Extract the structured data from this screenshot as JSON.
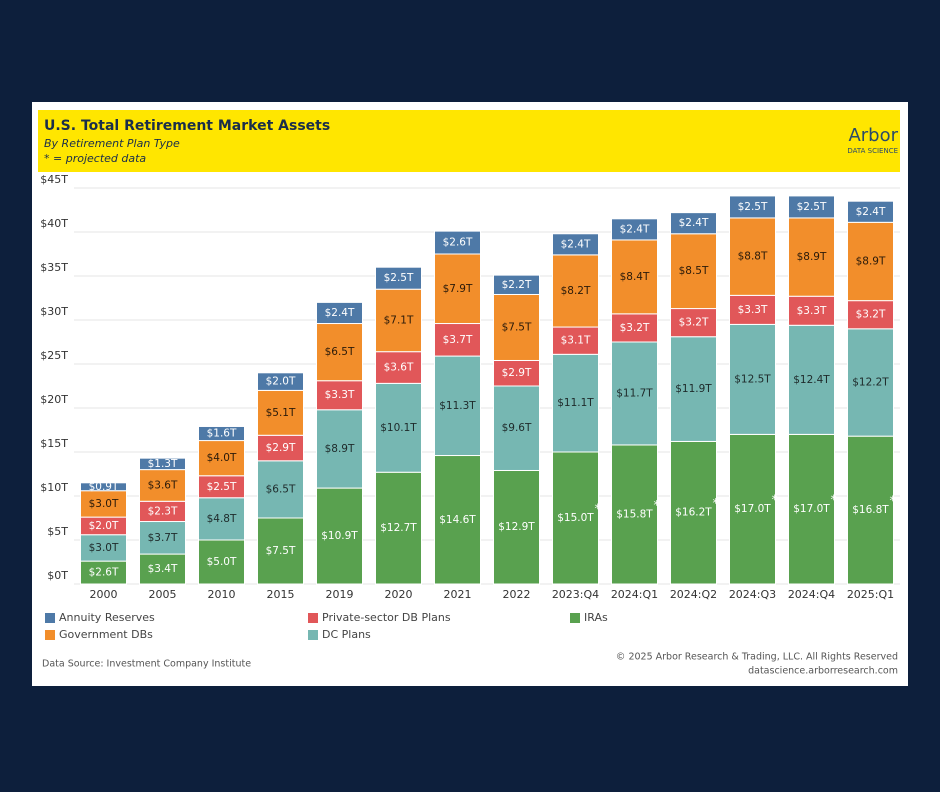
{
  "chart_data": {
    "type": "stacked_bar",
    "title": "U.S. Total Retirement Market Assets",
    "subtitle": "By Retirement Plan Type",
    "note": "* = projected data",
    "logo": "Arbor",
    "logo_sub": "DATA SCIENCE",
    "source": "Data Source: Investment Company Institute",
    "copyright": "© 2025 Arbor Research & Trading, LLC. All Rights Reserved",
    "website": "datascience.arborresearch.com",
    "categories": [
      "2000",
      "2005",
      "2010",
      "2015",
      "2019",
      "2020",
      "2021",
      "2022",
      "2023:Q4",
      "2024:Q1",
      "2024:Q2",
      "2024:Q3",
      "2024:Q4",
      "2025:Q1"
    ],
    "projected_markers": [
      null,
      null,
      null,
      null,
      null,
      null,
      null,
      null,
      "*",
      "*",
      "*",
      "*",
      "*",
      "*"
    ],
    "series": [
      {
        "name": "IRAs",
        "color": "#59a14f",
        "label_color": "#ffffff",
        "values": [
          2.6,
          3.4,
          5.0,
          7.5,
          10.9,
          12.7,
          14.6,
          12.9,
          15.0,
          15.8,
          16.2,
          17.0,
          17.0,
          16.8
        ],
        "value_labels": [
          "$2.6T",
          "$3.4T",
          "$5.0T",
          "$7.5T",
          "$10.9T",
          "$12.7T",
          "$14.6T",
          "$12.9T",
          "$15.0T",
          "$15.8T",
          "$16.2T",
          "$17.0T",
          "$17.0T",
          "$16.8T"
        ]
      },
      {
        "name": "DC Plans",
        "color": "#76b7b2",
        "label_color": "#1e2a2a",
        "values": [
          3.0,
          3.7,
          4.8,
          6.5,
          8.9,
          10.1,
          11.3,
          9.6,
          11.1,
          11.7,
          11.9,
          12.5,
          12.4,
          12.2
        ],
        "value_labels": [
          "$3.0T",
          "$3.7T",
          "$4.8T",
          "$6.5T",
          "$8.9T",
          "$10.1T",
          "$11.3T",
          "$9.6T",
          "$11.1T",
          "$11.7T",
          "$11.9T",
          "$12.5T",
          "$12.4T",
          "$12.2T"
        ]
      },
      {
        "name": "Private-sector DB Plans",
        "color": "#e15759",
        "label_color": "#ffffff",
        "values": [
          2.0,
          2.3,
          2.5,
          2.9,
          3.3,
          3.6,
          3.7,
          2.9,
          3.1,
          3.2,
          3.2,
          3.3,
          3.3,
          3.2
        ],
        "value_labels": [
          "$2.0T",
          "$2.3T",
          "$2.5T",
          "$2.9T",
          "$3.3T",
          "$3.6T",
          "$3.7T",
          "$2.9T",
          "$3.1T",
          "$3.2T",
          "$3.2T",
          "$3.3T",
          "$3.3T",
          "$3.2T"
        ]
      },
      {
        "name": "Government DBs",
        "color": "#f28e2b",
        "label_color": "#2a1a0a",
        "values": [
          3.0,
          3.6,
          4.0,
          5.1,
          6.5,
          7.1,
          7.9,
          7.5,
          8.2,
          8.4,
          8.5,
          8.8,
          8.9,
          8.9
        ],
        "value_labels": [
          "$3.0T",
          "$3.6T",
          "$4.0T",
          "$5.1T",
          "$6.5T",
          "$7.1T",
          "$7.9T",
          "$7.5T",
          "$8.2T",
          "$8.4T",
          "$8.5T",
          "$8.8T",
          "$8.9T",
          "$8.9T"
        ]
      },
      {
        "name": "Annuity Reserves",
        "color": "#4e79a7",
        "label_color": "#ffffff",
        "values": [
          0.9,
          1.3,
          1.6,
          2.0,
          2.4,
          2.5,
          2.6,
          2.2,
          2.4,
          2.4,
          2.4,
          2.5,
          2.5,
          2.4
        ],
        "value_labels": [
          "$0.9T",
          "$1.3T",
          "$1.6T",
          "$2.0T",
          "$2.4T",
          "$2.5T",
          "$2.6T",
          "$2.2T",
          "$2.4T",
          "$2.4T",
          "$2.4T",
          "$2.5T",
          "$2.5T",
          "$2.4T"
        ]
      }
    ],
    "ylim": [
      0,
      45
    ],
    "yticks": [
      {
        "value": 0,
        "label": "$0T"
      },
      {
        "value": 5,
        "label": "$5T"
      },
      {
        "value": 10,
        "label": "$10T"
      },
      {
        "value": 15,
        "label": "$15T"
      },
      {
        "value": 20,
        "label": "$20T"
      },
      {
        "value": 25,
        "label": "$25T"
      },
      {
        "value": 30,
        "label": "$30T"
      },
      {
        "value": 35,
        "label": "$35T"
      },
      {
        "value": 40,
        "label": "$40T"
      },
      {
        "value": 45,
        "label": "$45T"
      }
    ],
    "grid": true
  }
}
